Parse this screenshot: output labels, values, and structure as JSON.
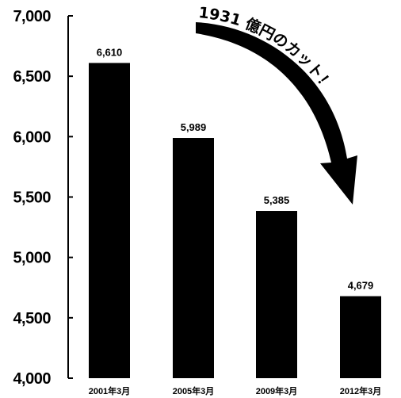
{
  "chart_data": {
    "type": "bar",
    "categories": [
      "2001年3月",
      "2005年3月",
      "2009年3月",
      "2012年3月"
    ],
    "values": [
      6610,
      5989,
      5385,
      4679
    ],
    "data_labels": [
      "6,610",
      "5,989",
      "5,385",
      "4,679"
    ],
    "ylim": [
      4000,
      7000
    ],
    "yticks": [
      4000,
      4500,
      5000,
      5500,
      6000,
      6500,
      7000
    ],
    "ytick_labels": [
      "4,000",
      "4,500",
      "5,000",
      "5,500",
      "6,000",
      "6,500",
      "7,000"
    ],
    "bar_color": "#000000",
    "grid": false,
    "annotation": "1931 億円のカット！"
  }
}
